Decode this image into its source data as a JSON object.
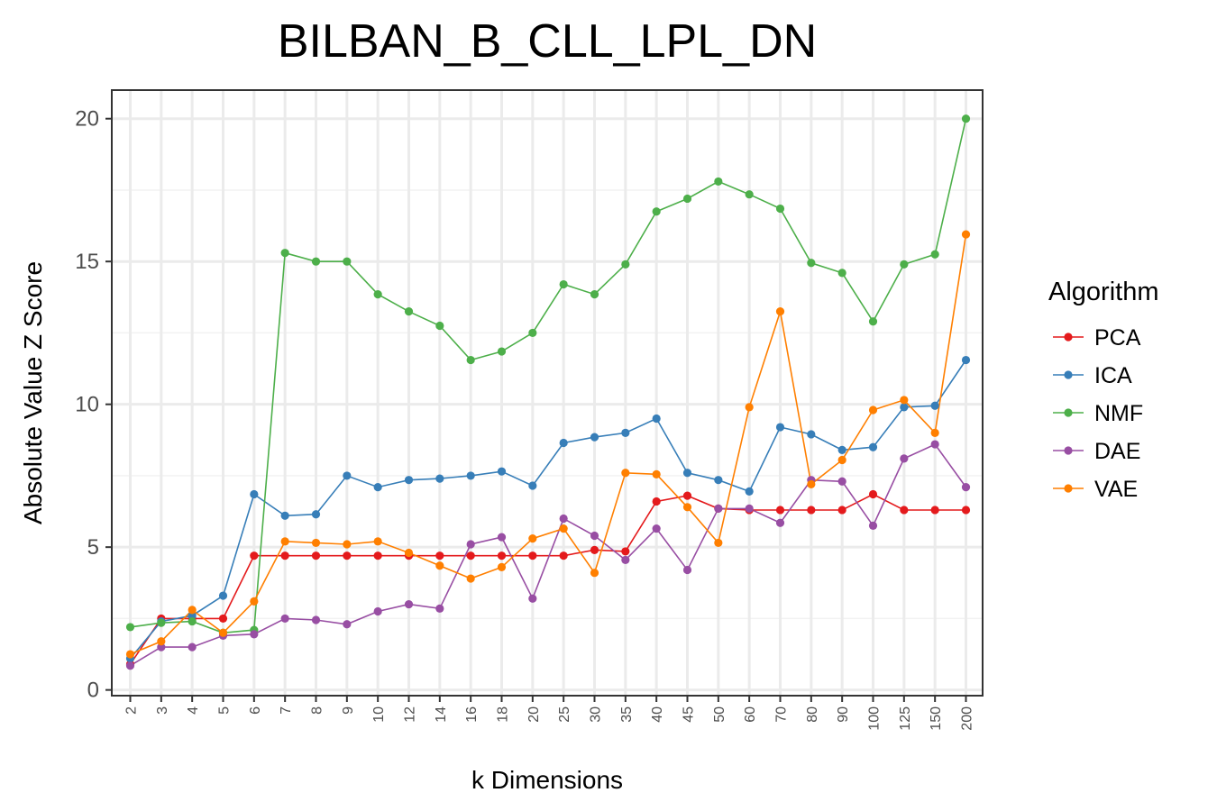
{
  "chart_data": {
    "type": "line",
    "title": "BILBAN_B_CLL_LPL_DN",
    "xlabel": "k Dimensions",
    "ylabel": "Absolute Value Z Score",
    "categories": [
      "2",
      "3",
      "4",
      "5",
      "6",
      "7",
      "8",
      "9",
      "10",
      "12",
      "14",
      "16",
      "18",
      "20",
      "25",
      "30",
      "35",
      "40",
      "45",
      "50",
      "60",
      "70",
      "80",
      "90",
      "100",
      "125",
      "150",
      "200"
    ],
    "y_ticks": [
      0,
      5,
      10,
      15,
      20
    ],
    "ylim": [
      -0.2,
      21.0
    ],
    "grid": true,
    "legend_title": "Algorithm",
    "legend_position": "right",
    "series": [
      {
        "name": "PCA",
        "color": "#e41a1c",
        "values": [
          0.9,
          2.5,
          2.5,
          2.5,
          4.7,
          4.7,
          4.7,
          4.7,
          4.7,
          4.7,
          4.7,
          4.7,
          4.7,
          4.7,
          4.7,
          4.9,
          4.85,
          6.6,
          6.8,
          6.35,
          6.3,
          6.3,
          6.3,
          6.3,
          6.85,
          6.3,
          6.3,
          6.3
        ]
      },
      {
        "name": "ICA",
        "color": "#377eb8",
        "values": [
          1.1,
          2.4,
          2.6,
          3.3,
          6.85,
          6.1,
          6.15,
          7.5,
          7.1,
          7.35,
          7.4,
          7.5,
          7.65,
          7.15,
          8.65,
          8.85,
          9.0,
          9.5,
          7.6,
          7.35,
          6.95,
          9.2,
          8.95,
          8.4,
          8.5,
          9.9,
          9.95,
          11.55
        ]
      },
      {
        "name": "NMF",
        "color": "#4daf4a",
        "values": [
          2.2,
          2.35,
          2.4,
          2.0,
          2.1,
          15.3,
          15.0,
          15.0,
          13.85,
          13.25,
          12.75,
          11.55,
          11.85,
          12.5,
          14.2,
          13.85,
          14.9,
          16.75,
          17.2,
          17.8,
          17.35,
          16.85,
          14.95,
          14.6,
          12.9,
          14.9,
          15.25,
          20.0
        ]
      },
      {
        "name": "DAE",
        "color": "#984ea3",
        "values": [
          0.85,
          1.5,
          1.5,
          1.9,
          1.95,
          2.5,
          2.45,
          2.3,
          2.75,
          3.0,
          2.85,
          5.1,
          5.35,
          3.2,
          6.0,
          5.4,
          4.55,
          5.65,
          4.2,
          6.35,
          6.35,
          5.85,
          7.35,
          7.3,
          5.75,
          8.1,
          8.6,
          7.1
        ]
      },
      {
        "name": "VAE",
        "color": "#ff7f00",
        "values": [
          1.25,
          1.7,
          2.8,
          2.0,
          3.1,
          5.2,
          5.15,
          5.1,
          5.2,
          4.8,
          4.35,
          3.9,
          4.3,
          5.3,
          5.65,
          4.1,
          7.6,
          7.55,
          6.4,
          5.15,
          9.9,
          13.25,
          7.2,
          8.05,
          9.8,
          10.15,
          9.0,
          15.95
        ]
      }
    ]
  }
}
